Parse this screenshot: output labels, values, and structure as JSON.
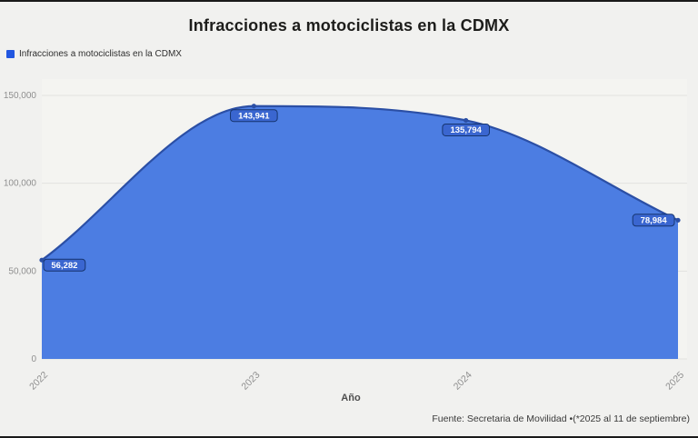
{
  "title": "Infracciones a motociclistas en la CDMX",
  "legend": {
    "label": "Infracciones a motociclistas en la CDMX",
    "swatch_color": "#2257e0"
  },
  "chart_data": {
    "type": "area",
    "categories": [
      "2022",
      "2023",
      "2024",
      "2025"
    ],
    "series": [
      {
        "name": "Infracciones a motociclistas en la CDMX",
        "values": [
          56282,
          143941,
          135794,
          78984
        ]
      }
    ],
    "point_labels": [
      "56,282",
      "143,941",
      "135,794",
      "78,984"
    ],
    "title": "Infracciones a motociclistas en la CDMX",
    "xlabel": "Año",
    "ylabel": "",
    "ylim": [
      0,
      150000
    ],
    "yticks": [
      0,
      50000,
      100000,
      150000
    ],
    "ytick_labels": [
      "0",
      "50,000",
      "100,000",
      "150,000"
    ],
    "grid": true,
    "legend_position": "top-left",
    "curve": "smooth-monotone"
  },
  "footer": {
    "source": "Fuente: Secretaria de Movilidad •(*2025 al 11 de septiembre)"
  },
  "colors": {
    "background": "#f1f1ef",
    "plot_background": "#f4f4f1",
    "area_fill": "#4c7de2",
    "line_stroke": "#2b4fa5",
    "badge_fill": "#3a66d0",
    "badge_border": "#16356f",
    "badge_text": "#ffffff",
    "gridline": "#e2e2df",
    "tick_text": "#8f8f8f"
  }
}
